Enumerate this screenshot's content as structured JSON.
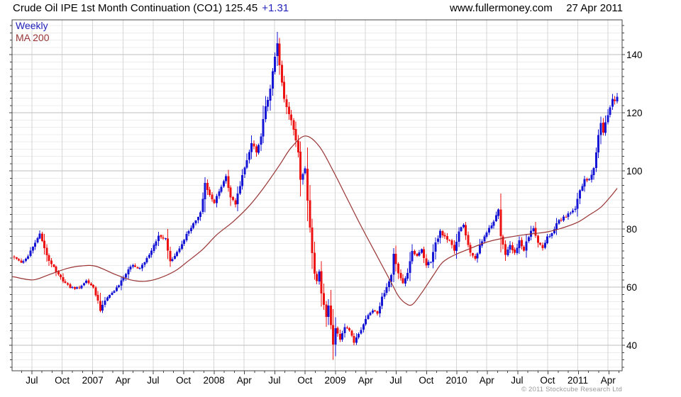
{
  "header": {
    "title_main": "Crude Oil IPE 1st Month Continuation (CO1) 125.45",
    "title_change": "+1.31",
    "website": "www.fullermoney.com",
    "date": "27 Apr 2011"
  },
  "legend": {
    "series1": "Weekly",
    "series2": "MA 200"
  },
  "footer": {
    "copyright": "© 2011 Stockcube Research Ltd"
  },
  "colors": {
    "up_candle": "#1515d6",
    "down_candle": "#ee1111",
    "ma_line": "#993333",
    "legend_weekly_text": "#2222bb",
    "grid_minor": "#ececec",
    "grid_major": "#bdbdbd",
    "grid_vertical": "#d6d6d6",
    "axis_border": "#444444",
    "label_text": "#000000",
    "copyright_text": "#9a9a9a"
  },
  "chart_data": {
    "type": "candlestick",
    "title": "Crude Oil IPE 1st Month Continuation (CO1)",
    "interval": "weekly",
    "start_date": "2006-05-05",
    "end_date": "2011-04-27",
    "last": {
      "price": 125.45,
      "change": 1.31,
      "date": "27 Apr 2011"
    },
    "y_axis": {
      "ticks": [
        40,
        60,
        80,
        100,
        120,
        140
      ],
      "minor_step": 2.5,
      "visible_range": [
        31.2,
        152
      ],
      "side": "right"
    },
    "x_axis": {
      "minor_step_weeks": 4.3478,
      "ticks": [
        {
          "label": "Jul",
          "week": 7.6
        },
        {
          "label": "Oct",
          "week": 20.6
        },
        {
          "label": "2007",
          "week": 33.7
        },
        {
          "label": "Apr",
          "week": 46.7
        },
        {
          "label": "Jul",
          "week": 59.7
        },
        {
          "label": "Oct",
          "week": 72.7
        },
        {
          "label": "2008",
          "week": 85.8
        },
        {
          "label": "Apr",
          "week": 98.8
        },
        {
          "label": "Jul",
          "week": 111.8
        },
        {
          "label": "Oct",
          "week": 124.9
        },
        {
          "label": "2009",
          "week": 137.9
        },
        {
          "label": "Apr",
          "week": 150.9
        },
        {
          "label": "Jul",
          "week": 163.9
        },
        {
          "label": "Oct",
          "week": 177.0
        },
        {
          "label": "2010",
          "week": 190.0
        },
        {
          "label": "Apr",
          "week": 203.0
        },
        {
          "label": "Jul",
          "week": 216.0
        },
        {
          "label": "Oct",
          "week": 229.1
        },
        {
          "label": "2011",
          "week": 242.1
        },
        {
          "label": "Apr",
          "week": 255.1
        }
      ]
    },
    "series": [
      {
        "name": "Weekly",
        "type": "candlestick",
        "weeks_total": 260,
        "close_anchors": [
          [
            0,
            70
          ],
          [
            4,
            68.5
          ],
          [
            8,
            73.5
          ],
          [
            11,
            78
          ],
          [
            15,
            69
          ],
          [
            20,
            63
          ],
          [
            24,
            60
          ],
          [
            28,
            59.5
          ],
          [
            31,
            62.5
          ],
          [
            34,
            60
          ],
          [
            36,
            55
          ],
          [
            37,
            52
          ],
          [
            39,
            55.5
          ],
          [
            42,
            58
          ],
          [
            46,
            62
          ],
          [
            50,
            67.5
          ],
          [
            54,
            66.5
          ],
          [
            58,
            71
          ],
          [
            62,
            77.5
          ],
          [
            65,
            76.5
          ],
          [
            67,
            68.8
          ],
          [
            70,
            72
          ],
          [
            74,
            78
          ],
          [
            78,
            83
          ],
          [
            80,
            86
          ],
          [
            82,
            95.5
          ],
          [
            84,
            92
          ],
          [
            86,
            89
          ],
          [
            88,
            92.5
          ],
          [
            91,
            98
          ],
          [
            93,
            91
          ],
          [
            95,
            89
          ],
          [
            97,
            95
          ],
          [
            100,
            104
          ],
          [
            102,
            109
          ],
          [
            104,
            107
          ],
          [
            106,
            112
          ],
          [
            108,
            122
          ],
          [
            110,
            128
          ],
          [
            111,
            134
          ],
          [
            112,
            140
          ],
          [
            113,
            144.5
          ],
          [
            114,
            137
          ],
          [
            115,
            130.5
          ],
          [
            116,
            125.5
          ],
          [
            118,
            119
          ],
          [
            120,
            114.5
          ],
          [
            122,
            106
          ],
          [
            123,
            97.5
          ],
          [
            125,
            101
          ],
          [
            126,
            90
          ],
          [
            127,
            81
          ],
          [
            128,
            72
          ],
          [
            129,
            65
          ],
          [
            130,
            62
          ],
          [
            131,
            65.3
          ],
          [
            132,
            57.5
          ],
          [
            133,
            54
          ],
          [
            134,
            50
          ],
          [
            135,
            53.5
          ],
          [
            136,
            47
          ],
          [
            137,
            40
          ],
          [
            138,
            46
          ],
          [
            139,
            44
          ],
          [
            140,
            42
          ],
          [
            142,
            46.5
          ],
          [
            144,
            45
          ],
          [
            146,
            41
          ],
          [
            148,
            44
          ],
          [
            150,
            47
          ],
          [
            152,
            50.5
          ],
          [
            154,
            52
          ],
          [
            156,
            51
          ],
          [
            158,
            56.5
          ],
          [
            160,
            60
          ],
          [
            162,
            64.5
          ],
          [
            163,
            71
          ],
          [
            165,
            65
          ],
          [
            167,
            61
          ],
          [
            169,
            65
          ],
          [
            171,
            72.5
          ],
          [
            173,
            71
          ],
          [
            175,
            73
          ],
          [
            177,
            67.5
          ],
          [
            179,
            69
          ],
          [
            181,
            75
          ],
          [
            183,
            79.5
          ],
          [
            185,
            77
          ],
          [
            187,
            76.5
          ],
          [
            189,
            72.5
          ],
          [
            191,
            79
          ],
          [
            193,
            81.5
          ],
          [
            196,
            71.5
          ],
          [
            198,
            70
          ],
          [
            200,
            74
          ],
          [
            203,
            79
          ],
          [
            206,
            83
          ],
          [
            208,
            86.5
          ],
          [
            209,
            78
          ],
          [
            210,
            75
          ],
          [
            211,
            71.5
          ],
          [
            213,
            74.5
          ],
          [
            215,
            71.5
          ],
          [
            217,
            76
          ],
          [
            219,
            73
          ],
          [
            221,
            77.5
          ],
          [
            223,
            80.5
          ],
          [
            225,
            75.5
          ],
          [
            227,
            73.5
          ],
          [
            229,
            77.5
          ],
          [
            231,
            78.5
          ],
          [
            233,
            82
          ],
          [
            235,
            83
          ],
          [
            237,
            84.5
          ],
          [
            239,
            85.5
          ],
          [
            241,
            87
          ],
          [
            243,
            93
          ],
          [
            245,
            97
          ],
          [
            247,
            97.5
          ],
          [
            249,
            101
          ],
          [
            251,
            112
          ],
          [
            252,
            116
          ],
          [
            253,
            113.5
          ],
          [
            255,
            118.7
          ],
          [
            257,
            125.5
          ],
          [
            258,
            123.5
          ],
          [
            259,
            125.45
          ]
        ]
      },
      {
        "name": "MA 200",
        "type": "line",
        "period": 200,
        "anchors": [
          [
            0,
            63.5
          ],
          [
            8,
            62.5
          ],
          [
            15,
            64.3
          ],
          [
            23,
            66.5
          ],
          [
            29,
            67.3
          ],
          [
            35,
            67.2
          ],
          [
            43,
            64.5
          ],
          [
            50,
            62.5
          ],
          [
            56,
            62
          ],
          [
            62,
            63
          ],
          [
            69,
            65.5
          ],
          [
            74,
            68.5
          ],
          [
            81,
            73
          ],
          [
            87,
            78
          ],
          [
            94,
            82.5
          ],
          [
            101,
            88
          ],
          [
            107,
            94
          ],
          [
            114,
            102
          ],
          [
            119,
            108
          ],
          [
            125,
            112
          ],
          [
            131,
            108.5
          ],
          [
            137,
            100
          ],
          [
            143,
            90.5
          ],
          [
            149,
            81
          ],
          [
            155,
            72
          ],
          [
            162,
            61.5
          ],
          [
            165,
            57
          ],
          [
            168,
            54.5
          ],
          [
            171,
            54
          ],
          [
            175,
            58
          ],
          [
            180,
            64
          ],
          [
            184,
            68.5
          ],
          [
            189,
            71
          ],
          [
            195,
            73
          ],
          [
            203,
            75.5
          ],
          [
            210,
            76.8
          ],
          [
            219,
            78
          ],
          [
            229,
            79
          ],
          [
            236,
            80.5
          ],
          [
            242,
            82.3
          ],
          [
            247,
            84.8
          ],
          [
            252,
            87.5
          ],
          [
            256,
            91
          ],
          [
            259,
            94
          ]
        ]
      }
    ]
  }
}
